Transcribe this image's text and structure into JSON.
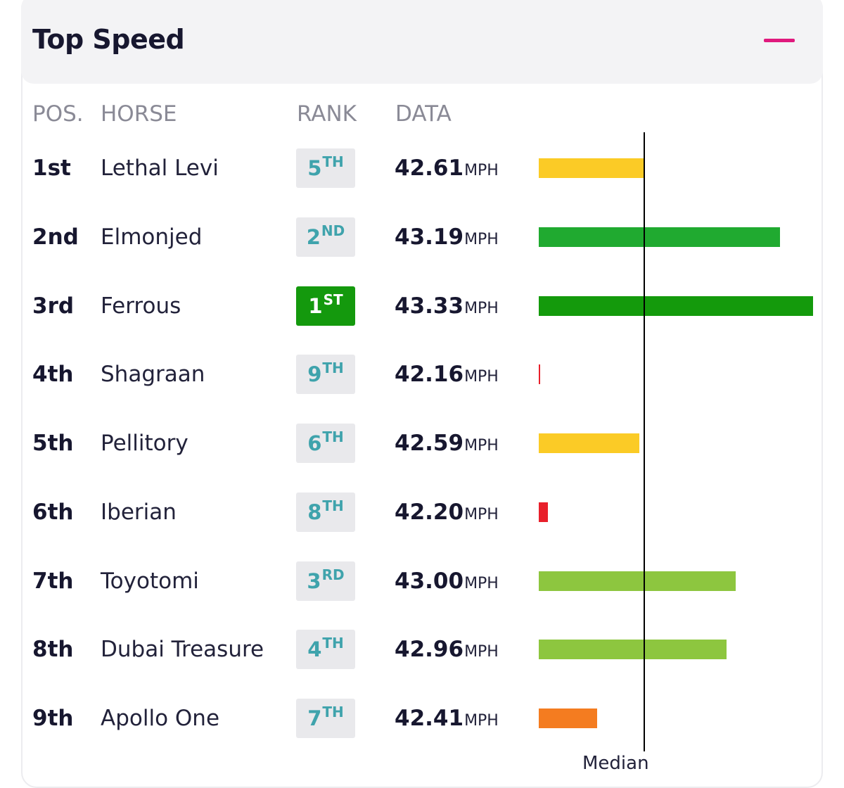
{
  "panel": {
    "title": "Top Speed",
    "collapse_icon": "minus-icon",
    "accent_color": "#e0197d"
  },
  "columns": {
    "pos": "POS.",
    "horse": "HORSE",
    "rank": "RANK",
    "data": "DATA"
  },
  "median_label": "Median",
  "median_value": 42.61,
  "unit": "MPH",
  "rows": [
    {
      "pos": "1st",
      "horse": "Lethal Levi",
      "rank_num": "5",
      "rank_suffix": "TH",
      "speed": "42.61",
      "bar_color": "#fbcb26"
    },
    {
      "pos": "2nd",
      "horse": "Elmonjed",
      "rank_num": "2",
      "rank_suffix": "ND",
      "speed": "43.19",
      "bar_color": "#20aa30"
    },
    {
      "pos": "3rd",
      "horse": "Ferrous",
      "rank_num": "1",
      "rank_suffix": "ST",
      "speed": "43.33",
      "bar_color": "#149a0c"
    },
    {
      "pos": "4th",
      "horse": "Shagraan",
      "rank_num": "9",
      "rank_suffix": "TH",
      "speed": "42.16",
      "bar_color": "#e8202b"
    },
    {
      "pos": "5th",
      "horse": "Pellitory",
      "rank_num": "6",
      "rank_suffix": "TH",
      "speed": "42.59",
      "bar_color": "#fbcb26"
    },
    {
      "pos": "6th",
      "horse": "Iberian",
      "rank_num": "8",
      "rank_suffix": "TH",
      "speed": "42.20",
      "bar_color": "#e8202b"
    },
    {
      "pos": "7th",
      "horse": "Toyotomi",
      "rank_num": "3",
      "rank_suffix": "RD",
      "speed": "43.00",
      "bar_color": "#8dc63f"
    },
    {
      "pos": "8th",
      "horse": "Dubai Treasure",
      "rank_num": "4",
      "rank_suffix": "TH",
      "speed": "42.96",
      "bar_color": "#8dc63f"
    },
    {
      "pos": "9th",
      "horse": "Apollo One",
      "rank_num": "7",
      "rank_suffix": "TH",
      "speed": "42.41",
      "bar_color": "#f47c20"
    }
  ]
}
